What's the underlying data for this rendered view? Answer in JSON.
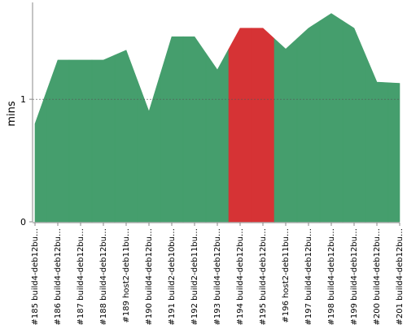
{
  "chart_data": {
    "type": "area",
    "y_label": "mins",
    "categories": [
      "#185 build4-deb12bu…",
      "#186 build4-deb12bu…",
      "#187 build4-deb12bu…",
      "#188 build4-deb12bu…",
      "#189 host2-deb11bu…",
      "#190 build4-deb12bu…",
      "#191 build2-deb10bu…",
      "#192 build2-deb11bu…",
      "#193 build4-deb12bu…",
      "#194 build4-deb12bu…",
      "#195 build4-deb12bu…",
      "#196 host2-deb11bu…",
      "#197 build4-deb12bu…",
      "#198 build4-deb12bu…",
      "#199 build4-deb12bu…",
      "#200 build4-deb12bu…",
      "#201 build4-deb12bu…"
    ],
    "values": [
      0.8,
      1.32,
      1.32,
      1.32,
      1.4,
      0.9,
      1.51,
      1.51,
      1.24,
      1.58,
      1.58,
      1.41,
      1.58,
      1.7,
      1.58,
      1.14,
      1.13
    ],
    "colors": [
      "#459e6d",
      "#459e6d",
      "#459e6d",
      "#459e6d",
      "#459e6d",
      "#459e6d",
      "#459e6d",
      "#459e6d",
      "#459e6d",
      "#d63335",
      "#d63335",
      "#459e6d",
      "#459e6d",
      "#459e6d",
      "#459e6d",
      "#459e6d",
      "#459e6d"
    ],
    "ylim": [
      0,
      1.79
    ],
    "yticks": [
      0,
      1
    ],
    "grid": true
  }
}
